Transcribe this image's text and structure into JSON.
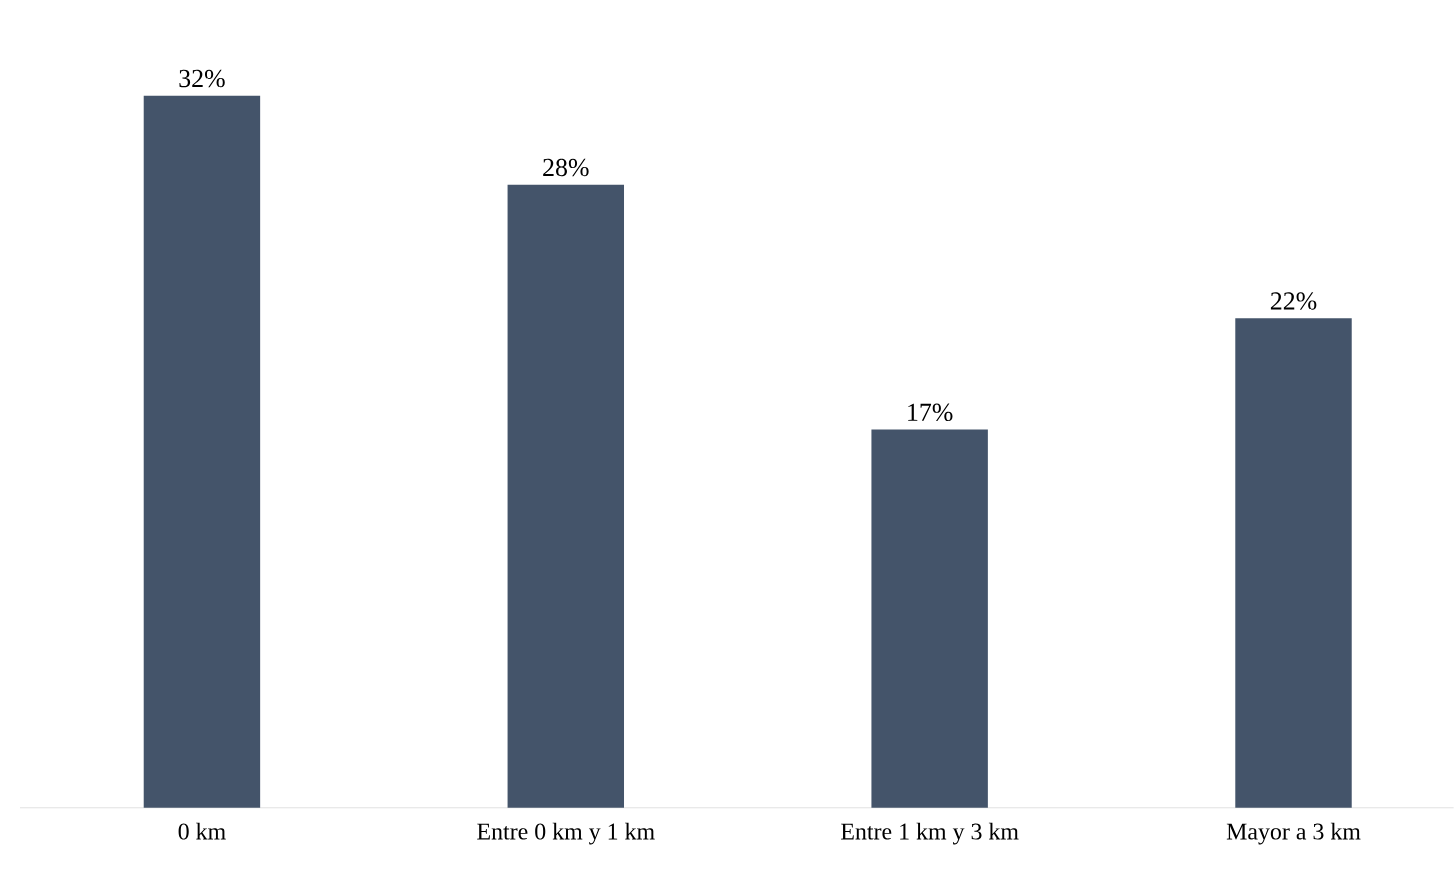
{
  "chart_data": {
    "type": "bar",
    "categories": [
      "0 km",
      "Entre 0 km y 1 km",
      "Entre 1 km y 3 km",
      "Mayor a 3 km"
    ],
    "values": [
      32,
      28,
      17,
      22
    ],
    "value_labels": [
      "32%",
      "28%",
      "17%",
      "22%"
    ],
    "color": "#44546a"
  }
}
